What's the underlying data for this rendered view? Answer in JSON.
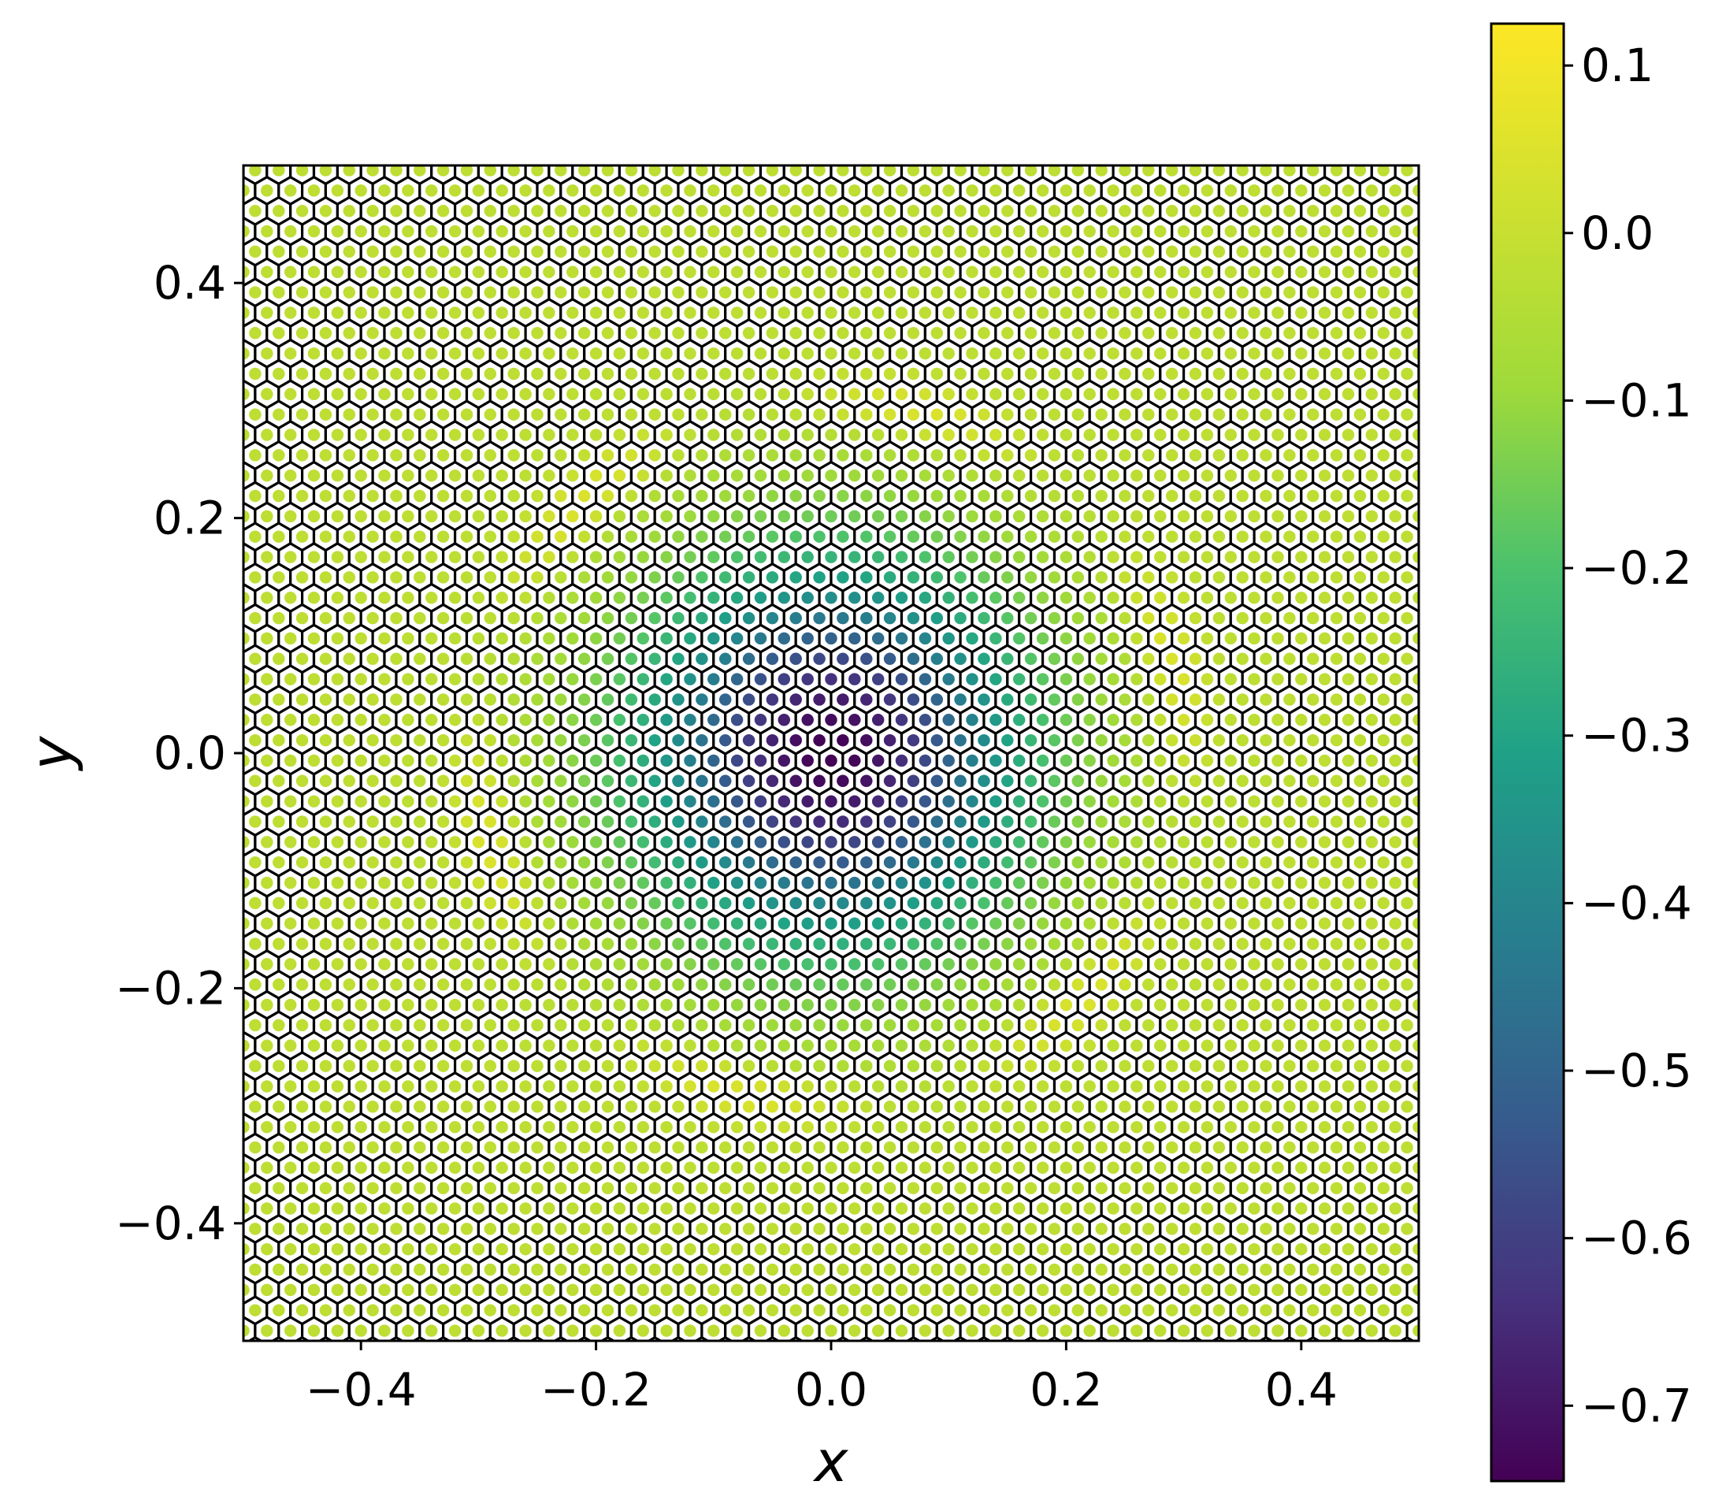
{
  "chart_data": {
    "type": "heatmap",
    "description_visible": "Voronoi mesh colored by scalar field",
    "x": {
      "label": "x",
      "range": [
        -0.5,
        0.5
      ],
      "ticks": [
        -0.4,
        -0.2,
        0.0,
        0.2,
        0.4
      ],
      "tick_labels": [
        "−0.4",
        "−0.2",
        "0.0",
        "0.2",
        "0.4"
      ]
    },
    "y": {
      "label": "y",
      "range": [
        -0.5,
        0.5
      ],
      "ticks": [
        -0.4,
        -0.2,
        0.0,
        0.2,
        0.4
      ],
      "tick_labels": [
        "−0.4",
        "−0.2",
        "0.0",
        "0.2",
        "0.4"
      ]
    },
    "colorbar": {
      "colormap": "viridis",
      "range": [
        -0.745,
        0.125
      ],
      "ticks": [
        0.1,
        0.0,
        -0.1,
        -0.2,
        -0.3,
        -0.4,
        -0.5,
        -0.6,
        -0.7
      ],
      "tick_labels": [
        "0.1",
        "0.0",
        "−0.1",
        "−0.2",
        "−0.3",
        "−0.4",
        "−0.5",
        "−0.6",
        "−0.7"
      ]
    },
    "field": {
      "background_value": -0.02,
      "center": [
        0.0,
        0.0
      ],
      "center_value": -0.745,
      "radius": 0.28,
      "ring_value": 0.12,
      "ring_radius": 0.3
    },
    "mesh": {
      "cells_per_row": 50,
      "cell_edge_color": "#000000",
      "marker_edge_color": "#ffffff"
    },
    "grid": false,
    "legend": "colorbar-right"
  }
}
